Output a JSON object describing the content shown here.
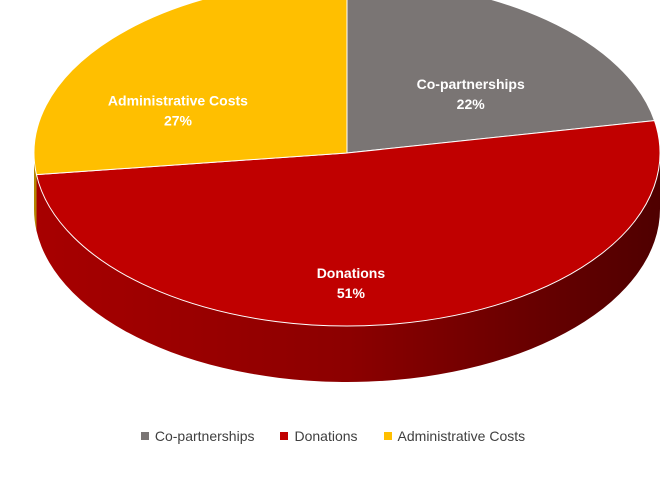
{
  "chart_data": {
    "type": "pie",
    "title": "",
    "categories": [
      "Co-partnerships",
      "Donations",
      "Administrative Costs"
    ],
    "values": [
      22,
      51,
      27
    ],
    "value_labels": [
      "22%",
      "51%",
      "27%"
    ],
    "unit": "%",
    "colors": [
      "#7a7574",
      "#c00000",
      "#ffbf00"
    ],
    "style": "3d",
    "legend_position": "bottom"
  }
}
